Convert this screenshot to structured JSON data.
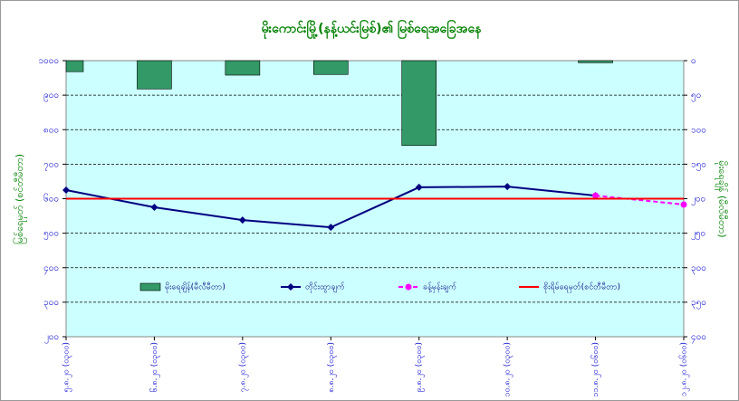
{
  "chart_data": {
    "type": "combo",
    "title": "မိုးကောင်းမြို့(နန့်ယင်းမြစ်)၏ မြစ်ရေအခြေအနေ",
    "y_label": "မြစ်ရေမှတ် (စင်တီမီတာ)",
    "y2_label": "မိုးရေချိန် (မီလီမီတာ)",
    "categories": [
      "၅.၈.၂၀ (၀၃၀၀)",
      "၆.၈.၂၀ (၀၃၀၀)",
      "၇.၈.၂၀ (၀၃၀၀)",
      "၈.၈.၂၀ (၀၃၀၀)",
      "၉.၈.၂၀ (၀၃၀၀)",
      "၁၀.၈.၂၀ (၀၃၀၀)",
      "၁၁.၈.၂၀ (၀၆၀၀)",
      "၁၂.၈.၂၀ (၀၆၀၀)"
    ],
    "ylim": [
      200,
      1000
    ],
    "yticks": [
      {
        "value": 1000,
        "label": "၁၀၀၀"
      },
      {
        "value": 900,
        "label": "၉၀၀"
      },
      {
        "value": 800,
        "label": "၈၀၀"
      },
      {
        "value": 700,
        "label": "၇၀၀"
      },
      {
        "value": 600,
        "label": "၆၀၀"
      },
      {
        "value": 500,
        "label": "၅၀၀"
      },
      {
        "value": 400,
        "label": "၄၀၀"
      },
      {
        "value": 300,
        "label": "၃၀၀"
      },
      {
        "value": 200,
        "label": "၂၀၀"
      }
    ],
    "y2lim": [
      400,
      0
    ],
    "y2ticks": [
      {
        "value": 0,
        "label": "၀"
      },
      {
        "value": 50,
        "label": "၅၀"
      },
      {
        "value": 100,
        "label": "၁၀၀"
      },
      {
        "value": 150,
        "label": "၁၅၀"
      },
      {
        "value": 200,
        "label": "၂၀၀"
      },
      {
        "value": 250,
        "label": "၂၅၀"
      },
      {
        "value": 300,
        "label": "၃၀၀"
      },
      {
        "value": 350,
        "label": "၃၅၀"
      },
      {
        "value": 400,
        "label": "၄၀၀"
      }
    ],
    "grid": true,
    "series": [
      {
        "name": "မိုးရေချိန်(မီလီမီတာ)",
        "type": "bar",
        "axis": "y2",
        "color": "#339966",
        "values": [
          16,
          41,
          21,
          20,
          123,
          0,
          3,
          null
        ]
      },
      {
        "name": "တိုင်းထွာချက်",
        "type": "line",
        "color": "#000080",
        "marker": true,
        "values": [
          625,
          575,
          538,
          517,
          633,
          635,
          609,
          null
        ]
      },
      {
        "name": "ခန့်မှန်းချက်",
        "type": "line",
        "color": "#ff00ff",
        "marker": true,
        "dashed": true,
        "values": [
          null,
          null,
          null,
          null,
          null,
          null,
          609,
          583
        ]
      },
      {
        "name": "စိုးရိမ်ရေမှတ်(စင်တီမီတာ)",
        "type": "line",
        "color": "#ff0000",
        "values": [
          600,
          600,
          600,
          600,
          600,
          600,
          600,
          600
        ]
      }
    ]
  }
}
